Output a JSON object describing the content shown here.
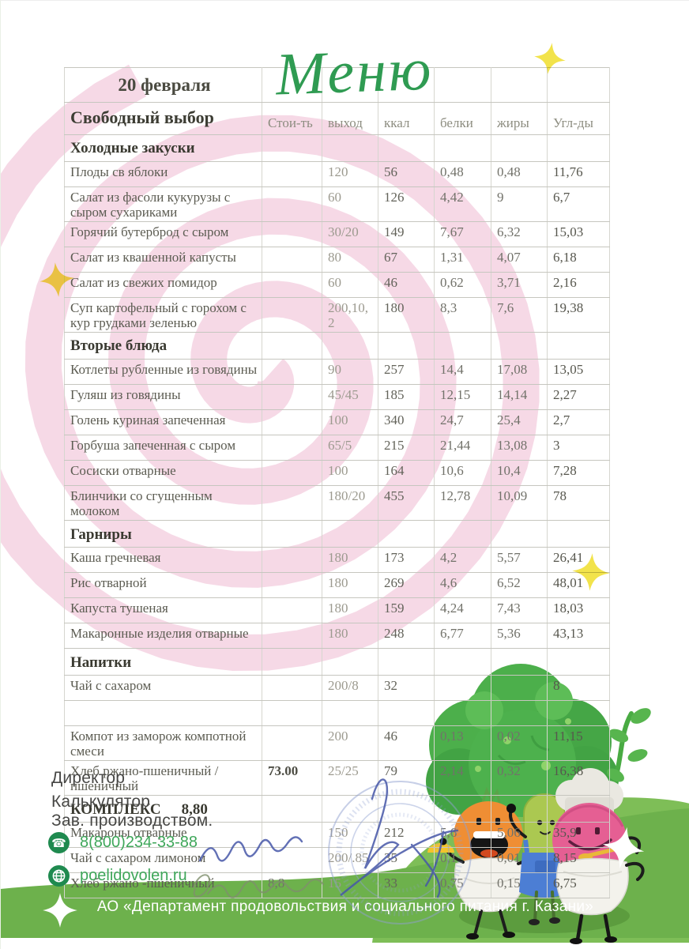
{
  "colors": {
    "accent_green": "#2f9b52",
    "footer_green": "#6db14c",
    "hill_green": "#7ebe57",
    "contact_green": "#3fa75a",
    "icon_green": "#1f8a4f",
    "spiral_pink": "#f5d2e2",
    "sparkle_yellow": "#f2e34b",
    "stamp_blue": "#8fa0d0",
    "signature_blue": "#4657a8"
  },
  "header": {
    "date": "20 февраля",
    "menu_title": "Меню",
    "free_choice": "Свободный выбор",
    "columns": [
      "Стои-ть",
      "выход",
      "ккал",
      "белки",
      "жиры",
      "Угл-ды"
    ]
  },
  "menu": {
    "rows": [
      {
        "type": "section",
        "name": "Холодные закуски"
      },
      {
        "type": "item",
        "name": "Плоды св яблоки",
        "out": "120",
        "kcal": "56",
        "protein": "0,48",
        "fat": "0,48",
        "carbs": "11,76"
      },
      {
        "type": "item",
        "name": "Салат из фасоли кукурузы с сыром  сухариками",
        "out": "60",
        "kcal": "126",
        "protein": "4,42",
        "fat": "9",
        "carbs": "6,7"
      },
      {
        "type": "item",
        "name": "Горячий бутерброд с сыром",
        "out": "30/20",
        "kcal": "149",
        "protein": "7,67",
        "fat": "6,32",
        "carbs": "15,03"
      },
      {
        "type": "item",
        "name": "Салат из квашенной капусты",
        "out": "80",
        "kcal": "67",
        "protein": "1,31",
        "fat": "4,07",
        "carbs": "6,18"
      },
      {
        "type": "item",
        "name": "Салат из свежих помидор",
        "out": "60",
        "kcal": "46",
        "protein": "0,62",
        "fat": "3,71",
        "carbs": "2,16"
      },
      {
        "type": "item",
        "name": "Суп картофельный с горохом  с кур грудками зеленью",
        "out": "200,10,2",
        "kcal": "180",
        "protein": "8,3",
        "fat": "7,6",
        "carbs": "19,38"
      },
      {
        "type": "section",
        "name": "Вторые блюда"
      },
      {
        "type": "item",
        "name": "Котлеты рубленные из говядины",
        "out": "90",
        "kcal": "257",
        "protein": "14,4",
        "fat": "17,08",
        "carbs": "13,05"
      },
      {
        "type": "item",
        "name": "Гуляш из говядины",
        "out": "45/45",
        "kcal": "185",
        "protein": "12,15",
        "fat": "14,14",
        "carbs": "2,27"
      },
      {
        "type": "item",
        "name": "Голень куриная запеченная",
        "out": "100",
        "kcal": "340",
        "protein": "24,7",
        "fat": "25,4",
        "carbs": "2,7"
      },
      {
        "type": "item",
        "name": "Горбуша запеченная с сыром",
        "out": "65/5",
        "kcal": "215",
        "protein": "21,44",
        "fat": "13,08",
        "carbs": "3"
      },
      {
        "type": "item",
        "name": "Сосиски отварные",
        "out": "100",
        "kcal": "164",
        "protein": "10,6",
        "fat": "10,4",
        "carbs": "7,28"
      },
      {
        "type": "item",
        "name": "Блинчики  со сгущенным молоком",
        "out": "180/20",
        "kcal": "455",
        "protein": "12,78",
        "fat": "10,09",
        "carbs": "78"
      },
      {
        "type": "section",
        "name": "Гарниры"
      },
      {
        "type": "item",
        "name": "Каша гречневая",
        "out": "180",
        "kcal": "173",
        "protein": "4,2",
        "fat": "5,57",
        "carbs": "26,41"
      },
      {
        "type": "item",
        "name": "Рис отварной",
        "out": "180",
        "kcal": "269",
        "protein": "4,6",
        "fat": "6,52",
        "carbs": "48,01"
      },
      {
        "type": "item",
        "name": "Капуста тушеная",
        "out": "180",
        "kcal": "159",
        "protein": "4,24",
        "fat": "7,43",
        "carbs": "18,03"
      },
      {
        "type": "item",
        "name": "Макаронные изделия отварные",
        "out": "180",
        "kcal": "248",
        "protein": "6,77",
        "fat": "5,36",
        "carbs": "43,13"
      },
      {
        "type": "section",
        "name": "Напитки"
      },
      {
        "type": "item",
        "name": "Чай с сахаром",
        "out": "200/8",
        "kcal": "32",
        "carbs": "8"
      },
      {
        "type": "empty"
      },
      {
        "type": "item",
        "name": "Компот из заморож компотной смеси",
        "out": "200",
        "kcal": "46",
        "protein": "0,13",
        "fat": "0,02",
        "carbs": "11,15"
      },
      {
        "type": "item",
        "name": "Хлеб ржано-пшеничный /пшеничный",
        "cost": "73.00",
        "cost_bold": true,
        "out": "25/25",
        "kcal": "79",
        "protein": "2,14",
        "fat": "0,32",
        "carbs": "16,38"
      },
      {
        "type": "section",
        "name": "КОМПЛЕКС",
        "extra": "8,80"
      },
      {
        "type": "item",
        "name": "Макароны отварные",
        "out": "150",
        "kcal": "212",
        "protein": "5,6",
        "fat": "5,06",
        "carbs": "35,9"
      },
      {
        "type": "item",
        "name": "Чай с сахаром лимоном",
        "out": "200/.85",
        "kcal": "35",
        "protein": "0,1",
        "fat": "0,01",
        "carbs": "8,15"
      },
      {
        "type": "item",
        "name": "Хлеб ржано -пшеничный",
        "cost": "8,8",
        "out": "15",
        "kcal": "33",
        "protein": "0,75",
        "fat": "0,15",
        "carbs": "6,75"
      }
    ]
  },
  "officials": {
    "director": "Директор",
    "calculator": "Калькулятор",
    "production": "Зав. производством."
  },
  "contact": {
    "phone": "8(800)234-33-88",
    "website": "poelidovolen.ru"
  },
  "footer": {
    "text": "АО «Департамент продовольствия и социального питания г. Казани»"
  }
}
